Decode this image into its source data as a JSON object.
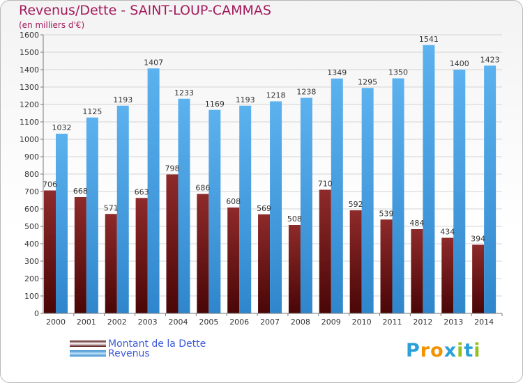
{
  "chart_data": {
    "type": "bar",
    "title": "Revenus/Dette - SAINT-LOUP-CAMMAS",
    "subtitle": "(en milliers d'€)",
    "categories": [
      "2000",
      "2001",
      "2002",
      "2003",
      "2004",
      "2005",
      "2006",
      "2007",
      "2008",
      "2009",
      "2010",
      "2011",
      "2012",
      "2013",
      "2014"
    ],
    "series": [
      {
        "name": "Montant de la Dette",
        "color": "#7a1a1a",
        "values": [
          706,
          668,
          571,
          663,
          798,
          686,
          608,
          569,
          508,
          710,
          592,
          539,
          484,
          434,
          394
        ]
      },
      {
        "name": "Revenus",
        "color": "#4ea5e8",
        "values": [
          1032,
          1125,
          1193,
          1407,
          1233,
          1169,
          1193,
          1218,
          1238,
          1349,
          1295,
          1350,
          1541,
          1400,
          1423
        ]
      }
    ],
    "ylim": [
      0,
      1600
    ],
    "yticks": [
      0,
      100,
      200,
      300,
      400,
      500,
      600,
      700,
      800,
      900,
      1000,
      1100,
      1200,
      1300,
      1400,
      1500,
      1600
    ],
    "grid": true,
    "legend": "bottom-left"
  },
  "logo": {
    "letters": [
      "P",
      "r",
      "o",
      "x",
      "i",
      "t",
      "i"
    ],
    "colors": [
      "#2aa0d8",
      "#f39200",
      "#f39200",
      "#2aa0d8",
      "#95c11f",
      "#2aa0d8",
      "#95c11f"
    ]
  }
}
